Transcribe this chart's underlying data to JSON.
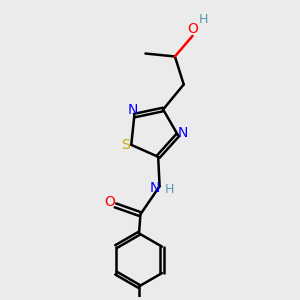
{
  "bg_color": "#ebebeb",
  "bond_color": "#000000",
  "N_color": "#0000ff",
  "O_color": "#ff0000",
  "S_color": "#ccaa00",
  "H_color": "#5599aa",
  "line_width": 1.8,
  "dbo": 0.07,
  "figsize": [
    3.0,
    3.0
  ],
  "dpi": 100,
  "xlim": [
    0,
    10
  ],
  "ylim": [
    0,
    10
  ]
}
